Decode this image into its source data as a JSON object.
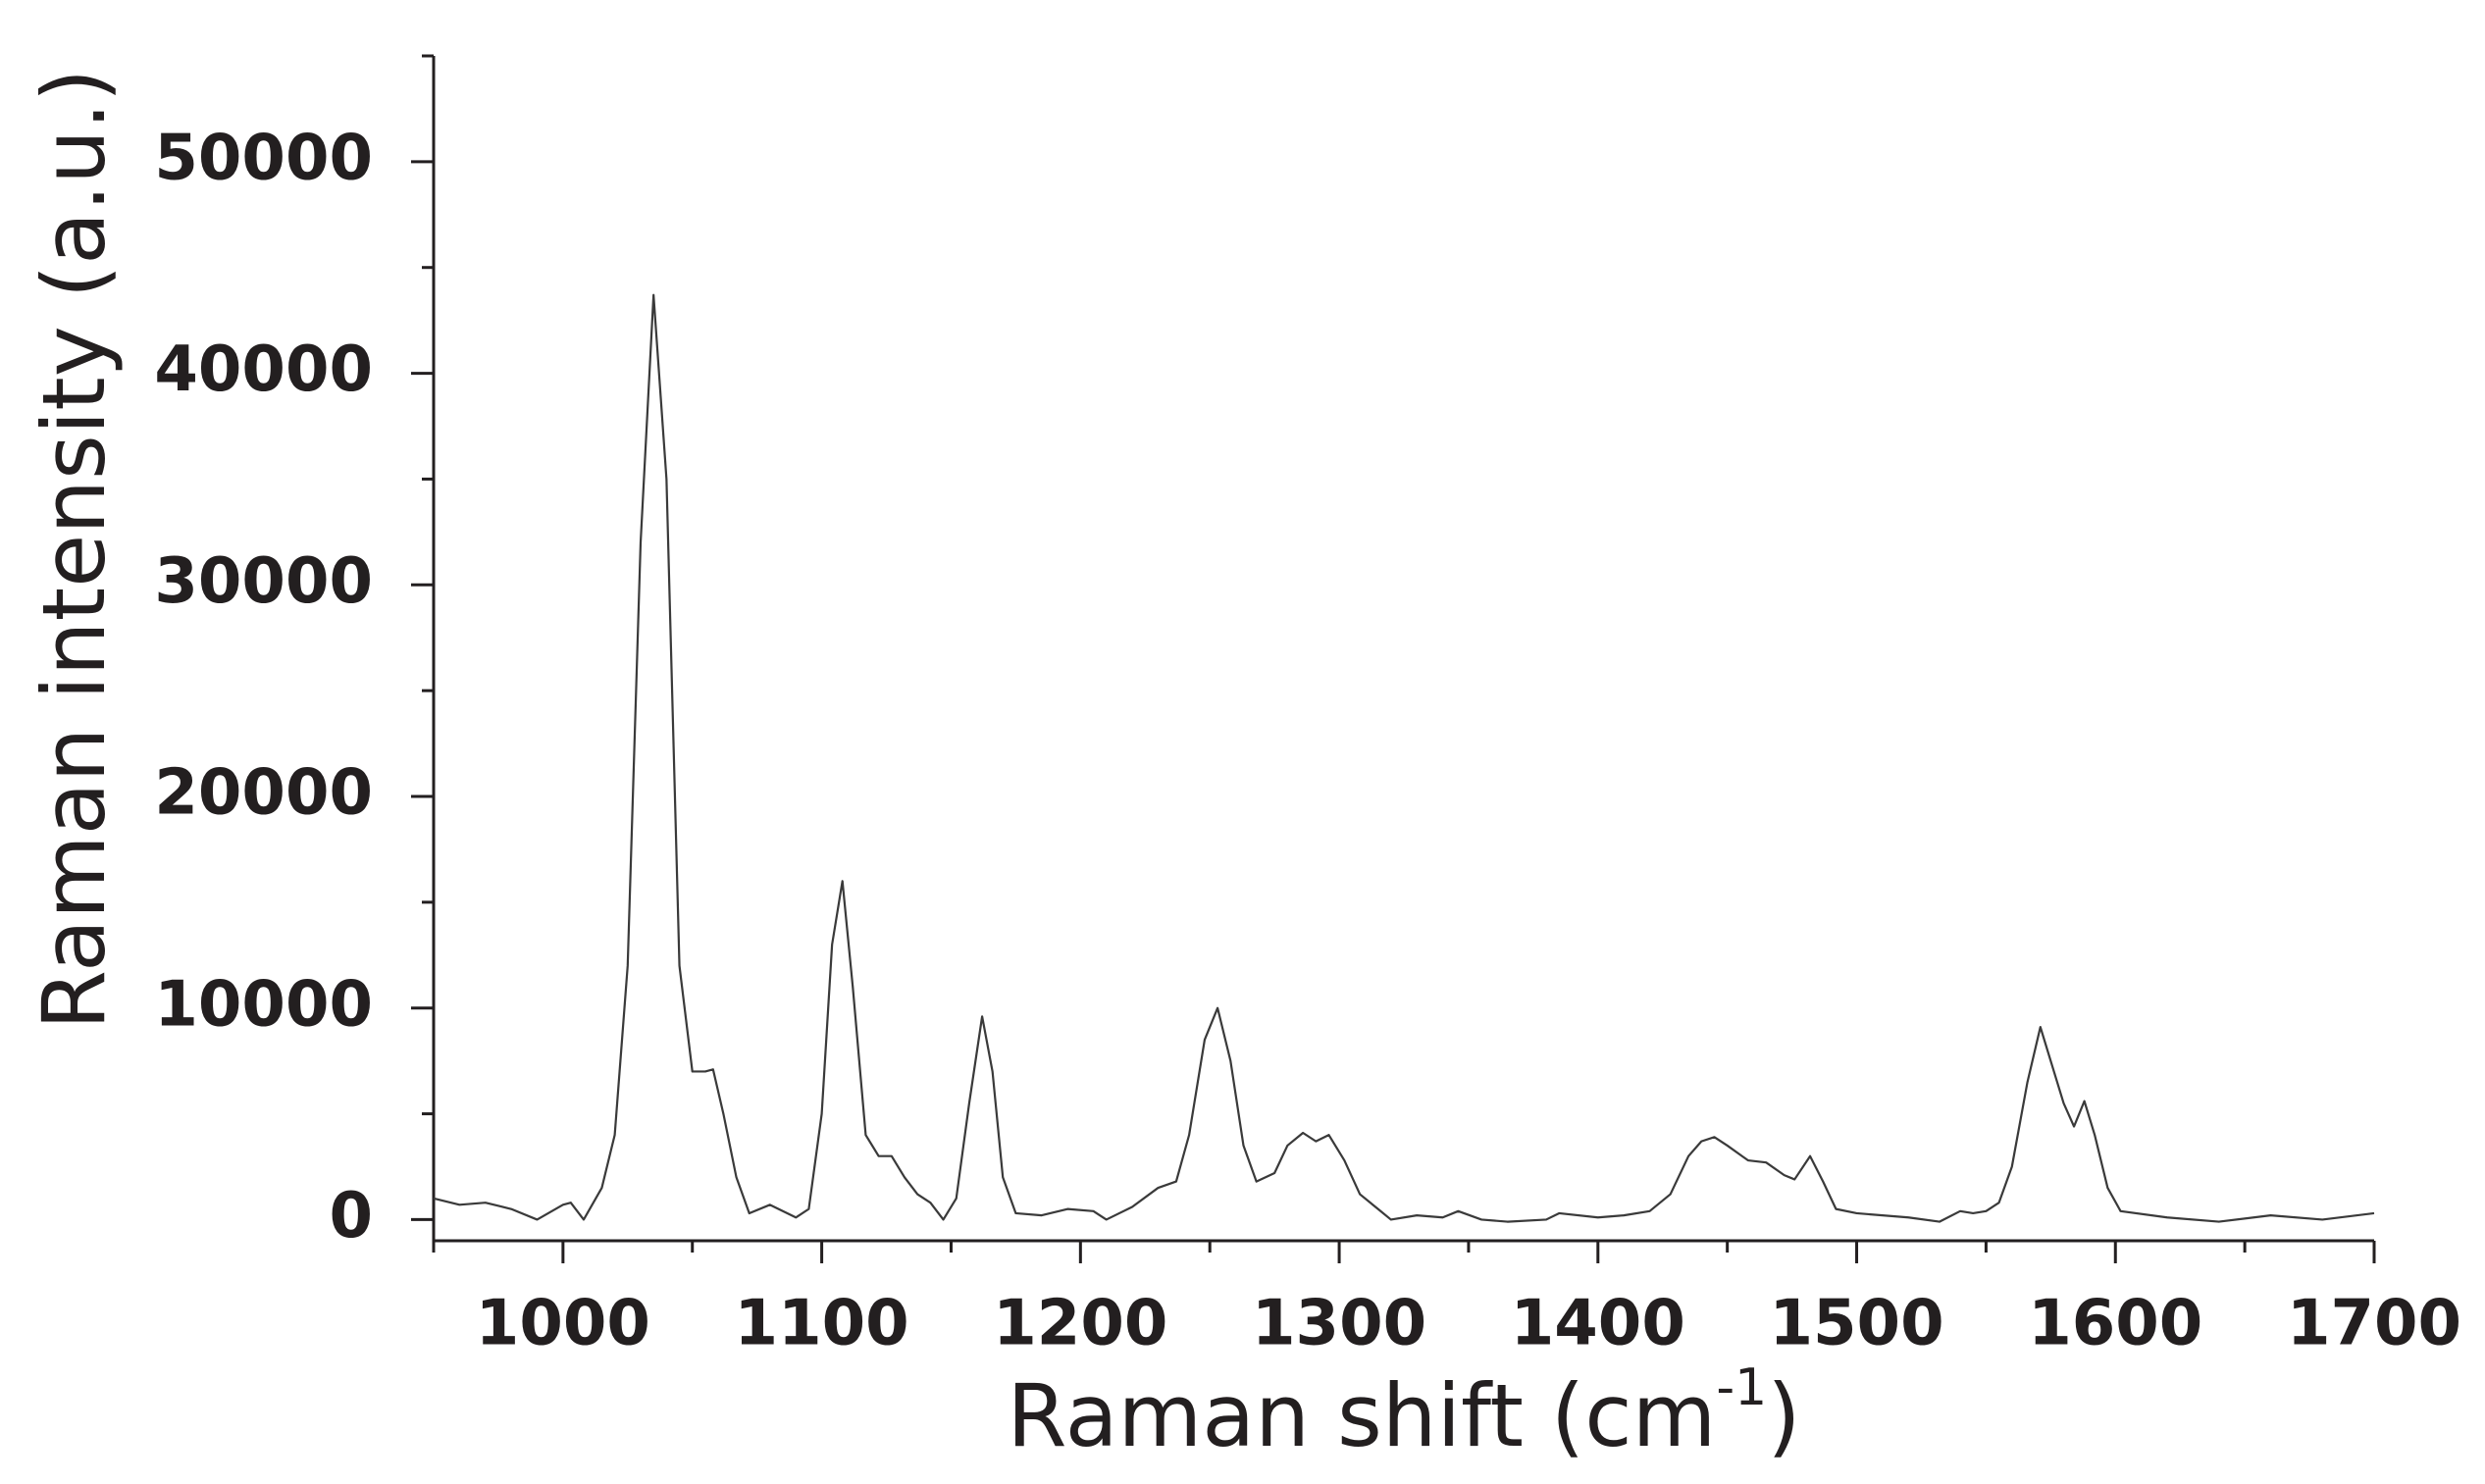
{
  "chart_data": {
    "type": "line",
    "xlabel": [
      "Raman shift (cm",
      "-1",
      ")"
    ],
    "ylabel": "Raman intensity (a.u.)",
    "xlim": [
      950,
      1700
    ],
    "ylim": [
      -1000,
      55000
    ],
    "xticks": [
      1000,
      1100,
      1200,
      1300,
      1400,
      1500,
      1600,
      1700
    ],
    "xminorticks": [
      950,
      1050,
      1150,
      1250,
      1350,
      1450,
      1550,
      1650
    ],
    "yticks": [
      0,
      10000,
      20000,
      30000,
      40000,
      50000
    ],
    "yminorticks": [
      5000,
      15000,
      25000,
      35000,
      45000,
      55000
    ],
    "grid": false,
    "series": [
      {
        "color": "#3a3a3a",
        "x": [
          950,
          960,
          970,
          980,
          990,
          1000,
          1003,
          1008,
          1015,
          1020,
          1025,
          1030,
          1035,
          1040,
          1045,
          1050,
          1055,
          1058,
          1062,
          1067,
          1072,
          1080,
          1090,
          1095,
          1100,
          1104,
          1108,
          1112,
          1117,
          1122,
          1127,
          1132,
          1137,
          1142,
          1147,
          1152,
          1157,
          1162,
          1166,
          1170,
          1175,
          1185,
          1195,
          1205,
          1210,
          1220,
          1230,
          1237,
          1242,
          1248,
          1253,
          1258,
          1263,
          1268,
          1275,
          1280,
          1286,
          1291,
          1296,
          1302,
          1308,
          1315,
          1320,
          1330,
          1340,
          1346,
          1355,
          1365,
          1380,
          1385,
          1400,
          1410,
          1420,
          1428,
          1435,
          1440,
          1445,
          1450,
          1458,
          1465,
          1472,
          1476,
          1482,
          1487,
          1492,
          1500,
          1520,
          1532,
          1540,
          1545,
          1550,
          1555,
          1560,
          1566,
          1571,
          1575,
          1580,
          1584,
          1588,
          1592,
          1597,
          1602,
          1620,
          1640,
          1660,
          1680,
          1700
        ],
        "values": [
          1000,
          700,
          800,
          500,
          0,
          700,
          800,
          0,
          1500,
          4000,
          12000,
          32000,
          43700,
          35000,
          12000,
          7000,
          7000,
          7100,
          5000,
          2000,
          300,
          700,
          100,
          500,
          5000,
          13000,
          16000,
          11000,
          4000,
          3000,
          3000,
          2000,
          1200,
          800,
          0,
          1000,
          5500,
          9600,
          7000,
          2000,
          300,
          200,
          500,
          400,
          0,
          600,
          1500,
          1800,
          4000,
          8500,
          10000,
          7500,
          3500,
          1800,
          2200,
          3500,
          4100,
          3700,
          4000,
          2800,
          1200,
          500,
          0,
          200,
          100,
          400,
          0,
          -100,
          0,
          300,
          100,
          200,
          400,
          1200,
          3000,
          3700,
          3900,
          3500,
          2800,
          2700,
          2100,
          1900,
          3000,
          1800,
          500,
          300,
          100,
          -100,
          400,
          300,
          400,
          800,
          2500,
          6500,
          9100,
          7500,
          5500,
          4400,
          5600,
          4000,
          1500,
          400,
          100,
          -100,
          200,
          0,
          300
        ]
      }
    ]
  }
}
